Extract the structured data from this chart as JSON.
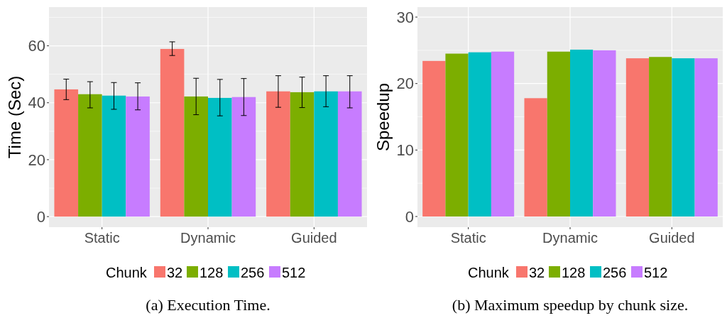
{
  "chart_data": [
    {
      "type": "bar",
      "ylabel": "Time (Sec)",
      "legend_title": "Chunk",
      "legend": "bottom",
      "grid": true,
      "categories": [
        "Static",
        "Dynamic",
        "Guided"
      ],
      "ylim": [
        -3.7,
        73.6
      ],
      "yticks": [
        0,
        {
          "value": 10,
          "label": null
        },
        20,
        {
          "value": 30,
          "label": null
        },
        40,
        {
          "value": 50,
          "label": null
        },
        60,
        {
          "value": 70,
          "label": null
        }
      ],
      "annotations": [
        "(a) Execution Time."
      ],
      "series": [
        {
          "name": "32",
          "color": "#f8766d",
          "values": [
            44.7,
            58.9,
            44.0
          ],
          "errors": [
            [
              41.1,
              48.3
            ],
            [
              56.6,
              61.4
            ],
            [
              38.4,
              49.5
            ]
          ]
        },
        {
          "name": "128",
          "color": "#7cae00",
          "values": [
            43.0,
            42.2,
            43.7
          ],
          "errors": [
            [
              38.2,
              47.4
            ],
            [
              35.8,
              48.6
            ],
            [
              38.3,
              49.0
            ]
          ]
        },
        {
          "name": "256",
          "color": "#00bfc4",
          "values": [
            42.5,
            41.7,
            44.0
          ],
          "errors": [
            [
              37.7,
              47.1
            ],
            [
              35.4,
              48.2
            ],
            [
              38.6,
              49.5
            ]
          ]
        },
        {
          "name": "512",
          "color": "#c77cff",
          "values": [
            42.2,
            42.0,
            44.0
          ],
          "errors": [
            [
              37.5,
              47.0
            ],
            [
              35.5,
              48.5
            ],
            [
              38.2,
              49.5
            ]
          ]
        }
      ]
    },
    {
      "type": "bar",
      "ylabel": "Speedup",
      "legend_title": "Chunk",
      "legend": "bottom",
      "grid": true,
      "categories": [
        "Static",
        "Dynamic",
        "Guided"
      ],
      "ylim": [
        -1.6,
        31.5
      ],
      "yticks": [
        0,
        {
          "value": 5,
          "label": null
        },
        10,
        {
          "value": 15,
          "label": null
        },
        20,
        {
          "value": 25,
          "label": null
        },
        30
      ],
      "annotations": [
        "(b) Maximum speedup by chunk size."
      ],
      "series": [
        {
          "name": "32",
          "color": "#f8766d",
          "values": [
            23.4,
            17.8,
            23.8
          ]
        },
        {
          "name": "128",
          "color": "#7cae00",
          "values": [
            24.5,
            24.8,
            24.0
          ]
        },
        {
          "name": "256",
          "color": "#00bfc4",
          "values": [
            24.7,
            25.1,
            23.8
          ]
        },
        {
          "name": "512",
          "color": "#c77cff",
          "values": [
            24.8,
            25.0,
            23.8
          ]
        }
      ]
    }
  ]
}
